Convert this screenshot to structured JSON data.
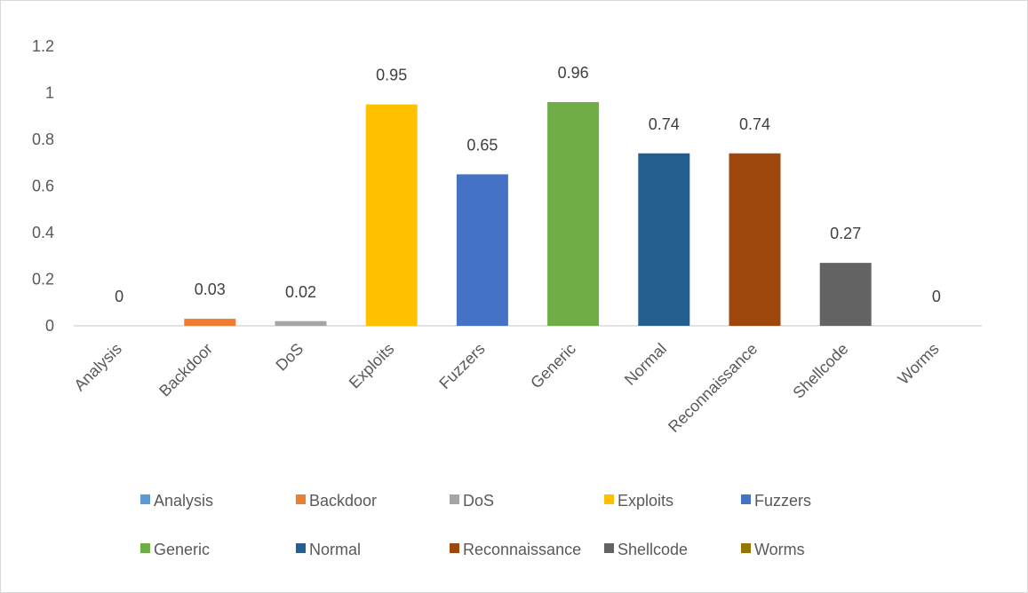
{
  "chart_data": {
    "type": "bar",
    "categories": [
      "Analysis",
      "Backdoor",
      "DoS",
      "Exploits",
      "Fuzzers",
      "Generic",
      "Normal",
      "Reconnaissance",
      "Shellcode",
      "Worms"
    ],
    "values": [
      0,
      0.03,
      0.02,
      0.95,
      0.65,
      0.96,
      0.74,
      0.74,
      0.27,
      0
    ],
    "data_labels": [
      "0",
      "0.03",
      "0.02",
      "0.95",
      "0.65",
      "0.96",
      "0.74",
      "0.74",
      "0.27",
      "0"
    ],
    "colors": [
      "#5b9bd5",
      "#ed7d31",
      "#a5a5a5",
      "#ffc000",
      "#4472c4",
      "#70ad47",
      "#255e91",
      "#9e480e",
      "#636363",
      "#997300"
    ],
    "yticks": [
      "0",
      "0.2",
      "0.4",
      "0.6",
      "0.8",
      "1",
      "1.2"
    ],
    "ylim": [
      0,
      1.2
    ],
    "grid": false,
    "legend_position": "bottom",
    "legend": [
      "Analysis",
      "Backdoor",
      "DoS",
      "Exploits",
      "Fuzzers",
      "Generic",
      "Normal",
      "Reconnaissance",
      "Shellcode",
      "Worms"
    ],
    "title": "",
    "xlabel": "",
    "ylabel": ""
  }
}
